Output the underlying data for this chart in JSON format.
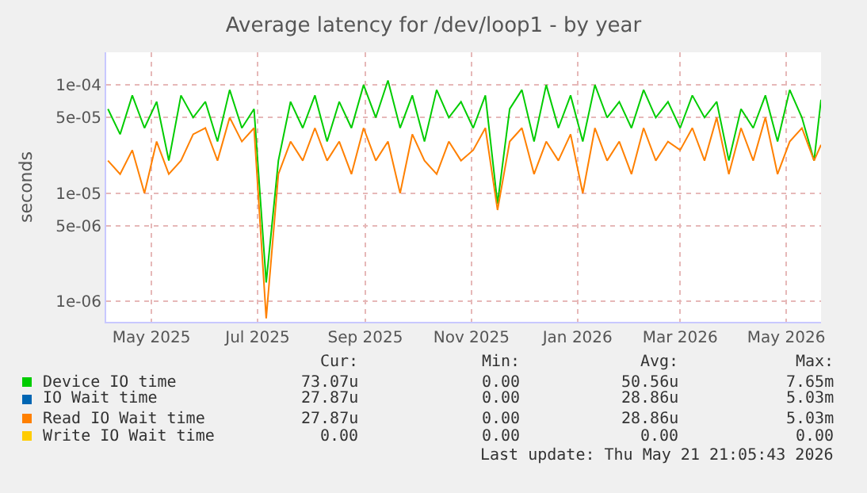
{
  "chart_data": {
    "type": "line",
    "title": "Average latency for /dev/loop1 - by year",
    "ylabel": "seconds",
    "x": [
      "2025-04-06",
      "2025-04-13",
      "2025-04-20",
      "2025-04-27",
      "2025-05-04",
      "2025-05-11",
      "2025-05-18",
      "2025-05-25",
      "2025-06-01",
      "2025-06-08",
      "2025-06-15",
      "2025-06-22",
      "2025-06-29",
      "2025-07-06",
      "2025-07-13",
      "2025-07-20",
      "2025-07-27",
      "2025-08-03",
      "2025-08-10",
      "2025-08-17",
      "2025-08-24",
      "2025-08-31",
      "2025-09-07",
      "2025-09-14",
      "2025-09-21",
      "2025-09-28",
      "2025-10-05",
      "2025-10-12",
      "2025-10-19",
      "2025-10-26",
      "2025-11-02",
      "2025-11-09",
      "2025-11-16",
      "2025-11-23",
      "2025-11-30",
      "2025-12-07",
      "2025-12-14",
      "2025-12-21",
      "2025-12-28",
      "2026-01-04",
      "2026-01-11",
      "2026-01-18",
      "2026-01-25",
      "2026-02-01",
      "2026-02-08",
      "2026-02-15",
      "2026-02-22",
      "2026-03-01",
      "2026-03-08",
      "2026-03-15",
      "2026-03-22",
      "2026-03-29",
      "2026-04-05",
      "2026-04-12",
      "2026-04-19",
      "2026-04-26",
      "2026-05-03",
      "2026-05-10",
      "2026-05-17",
      "2026-05-21"
    ],
    "series": [
      {
        "name": "Device IO time",
        "color": "#00cc00",
        "values": [
          6e-05,
          3.5e-05,
          8e-05,
          4e-05,
          7e-05,
          2e-05,
          8e-05,
          5e-05,
          7e-05,
          3e-05,
          9e-05,
          4e-05,
          6e-05,
          1.5e-06,
          2e-05,
          7e-05,
          4e-05,
          8e-05,
          3e-05,
          7e-05,
          4e-05,
          0.0001,
          5e-05,
          0.00011,
          4e-05,
          8e-05,
          3e-05,
          9e-05,
          5e-05,
          7e-05,
          4e-05,
          8e-05,
          8e-06,
          6e-05,
          9e-05,
          3e-05,
          0.0001,
          4e-05,
          8e-05,
          3e-05,
          0.0001,
          5e-05,
          7e-05,
          4e-05,
          9e-05,
          5e-05,
          7e-05,
          4e-05,
          8e-05,
          5e-05,
          7e-05,
          2e-05,
          6e-05,
          4e-05,
          8e-05,
          3e-05,
          9e-05,
          5e-05,
          2e-05,
          7.3e-05
        ]
      },
      {
        "name": "IO Wait time",
        "color": "#0066b3",
        "values": [
          null,
          null,
          null,
          null,
          null,
          null,
          null,
          null,
          null,
          null,
          null,
          null,
          null,
          null,
          null,
          null,
          null,
          null,
          null,
          null,
          null,
          null,
          null,
          null,
          null,
          null,
          null,
          null,
          null,
          null,
          null,
          null,
          null,
          null,
          null,
          null,
          null,
          null,
          null,
          null,
          null,
          null,
          null,
          null,
          null,
          null,
          null,
          null,
          null,
          null,
          null,
          null,
          null,
          null,
          null,
          null,
          null,
          null,
          null,
          null
        ]
      },
      {
        "name": "Read IO Wait time",
        "color": "#ff8000",
        "values": [
          2e-05,
          1.5e-05,
          2.5e-05,
          1e-05,
          3e-05,
          1.5e-05,
          2e-05,
          3.5e-05,
          4e-05,
          2e-05,
          5e-05,
          3e-05,
          4e-05,
          7e-07,
          1.5e-05,
          3e-05,
          2e-05,
          4e-05,
          2e-05,
          3e-05,
          1.5e-05,
          4e-05,
          2e-05,
          3e-05,
          1e-05,
          3.5e-05,
          2e-05,
          1.5e-05,
          3e-05,
          2e-05,
          2.5e-05,
          4e-05,
          7e-06,
          3e-05,
          4e-05,
          1.5e-05,
          3e-05,
          2e-05,
          3.5e-05,
          1e-05,
          4e-05,
          2e-05,
          3e-05,
          1.5e-05,
          4e-05,
          2e-05,
          3e-05,
          2.5e-05,
          4e-05,
          2e-05,
          5e-05,
          1.5e-05,
          4e-05,
          2e-05,
          5e-05,
          1.5e-05,
          3e-05,
          4e-05,
          2e-05,
          2.8e-05
        ]
      },
      {
        "name": "Write IO Wait time",
        "color": "#ffcc00",
        "values": [
          null,
          null,
          null,
          null,
          null,
          null,
          null,
          null,
          null,
          null,
          null,
          null,
          null,
          null,
          null,
          null,
          null,
          null,
          null,
          null,
          null,
          null,
          null,
          null,
          null,
          null,
          null,
          null,
          null,
          null,
          null,
          null,
          null,
          null,
          null,
          null,
          null,
          null,
          null,
          null,
          null,
          null,
          null,
          null,
          null,
          null,
          null,
          null,
          null,
          null,
          null,
          null,
          null,
          null,
          null,
          null,
          null,
          null,
          null,
          null
        ]
      }
    ],
    "log": "y",
    "xlim": [
      "2025-04-05",
      "2026-05-21"
    ],
    "xticks": [
      {
        "value": "2025-05-01",
        "label": "May 2025"
      },
      {
        "value": "2025-07-01",
        "label": "Jul 2025"
      },
      {
        "value": "2025-09-01",
        "label": "Sep 2025"
      },
      {
        "value": "2025-11-01",
        "label": "Nov 2025"
      },
      {
        "value": "2026-01-01",
        "label": "Jan 2026"
      },
      {
        "value": "2026-03-01",
        "label": "Mar 2026"
      },
      {
        "value": "2026-05-01",
        "label": "May 2026"
      }
    ],
    "ylim": [
      6.5e-07,
      0.0002
    ],
    "yticks": [
      {
        "value": 1e-06,
        "label": "1e-06"
      },
      {
        "value": 5e-06,
        "label": "5e-06"
      },
      {
        "value": 1e-05,
        "label": "1e-05"
      },
      {
        "value": 5e-05,
        "label": "5e-05"
      },
      {
        "value": 0.0001,
        "label": "1e-04"
      }
    ],
    "grid": true,
    "legend": "bottom",
    "marker": "none",
    "line_style": "solid",
    "annotations": [
      "Cur:",
      "Min:",
      "Avg:",
      "Max:",
      "73.07u",
      "0.00",
      "50.56u",
      "7.65m",
      "27.87u",
      "0.00",
      "28.86u",
      "5.03m",
      "27.87u",
      "0.00",
      "28.86u",
      "5.03m",
      "0.00",
      "0.00",
      "0.00",
      "0.00",
      "Last update: Thu May 21 21:05:43 2026"
    ]
  }
}
